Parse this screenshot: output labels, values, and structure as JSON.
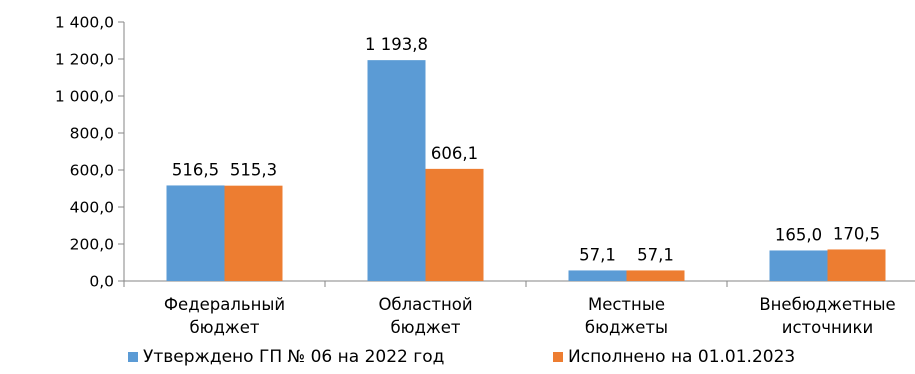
{
  "chart_data": {
    "type": "bar",
    "categories": [
      [
        "Федеральный",
        "бюджет"
      ],
      [
        "Областной",
        "бюджет"
      ],
      [
        "Местные",
        "бюджеты"
      ],
      [
        "Внебюджетные",
        "источники"
      ]
    ],
    "series": [
      {
        "name": "Утверждено ГП № 06 на 2022 год",
        "color": "#5B9BD5",
        "values": [
          516.5,
          1193.8,
          57.1,
          165.0
        ],
        "labels": [
          "516,5",
          "1 193,8",
          "57,1",
          "165,0"
        ]
      },
      {
        "name": "Исполнено на 01.01.2023",
        "color": "#ED7D31",
        "values": [
          515.3,
          606.1,
          57.1,
          170.5
        ],
        "labels": [
          "515,3",
          "606,1",
          "57,1",
          "170,5"
        ]
      }
    ],
    "ylim": [
      0,
      1400
    ],
    "yticks": [
      0,
      200,
      400,
      600,
      800,
      1000,
      1200,
      1400
    ],
    "ytick_labels": [
      "0,0",
      "200,0",
      "400,0",
      "600,0",
      "800,0",
      "1 000,0",
      "1 200,0",
      "1 400,0"
    ],
    "grid": false,
    "legend_position": "bottom",
    "title": "",
    "xlabel": "",
    "ylabel": ""
  }
}
